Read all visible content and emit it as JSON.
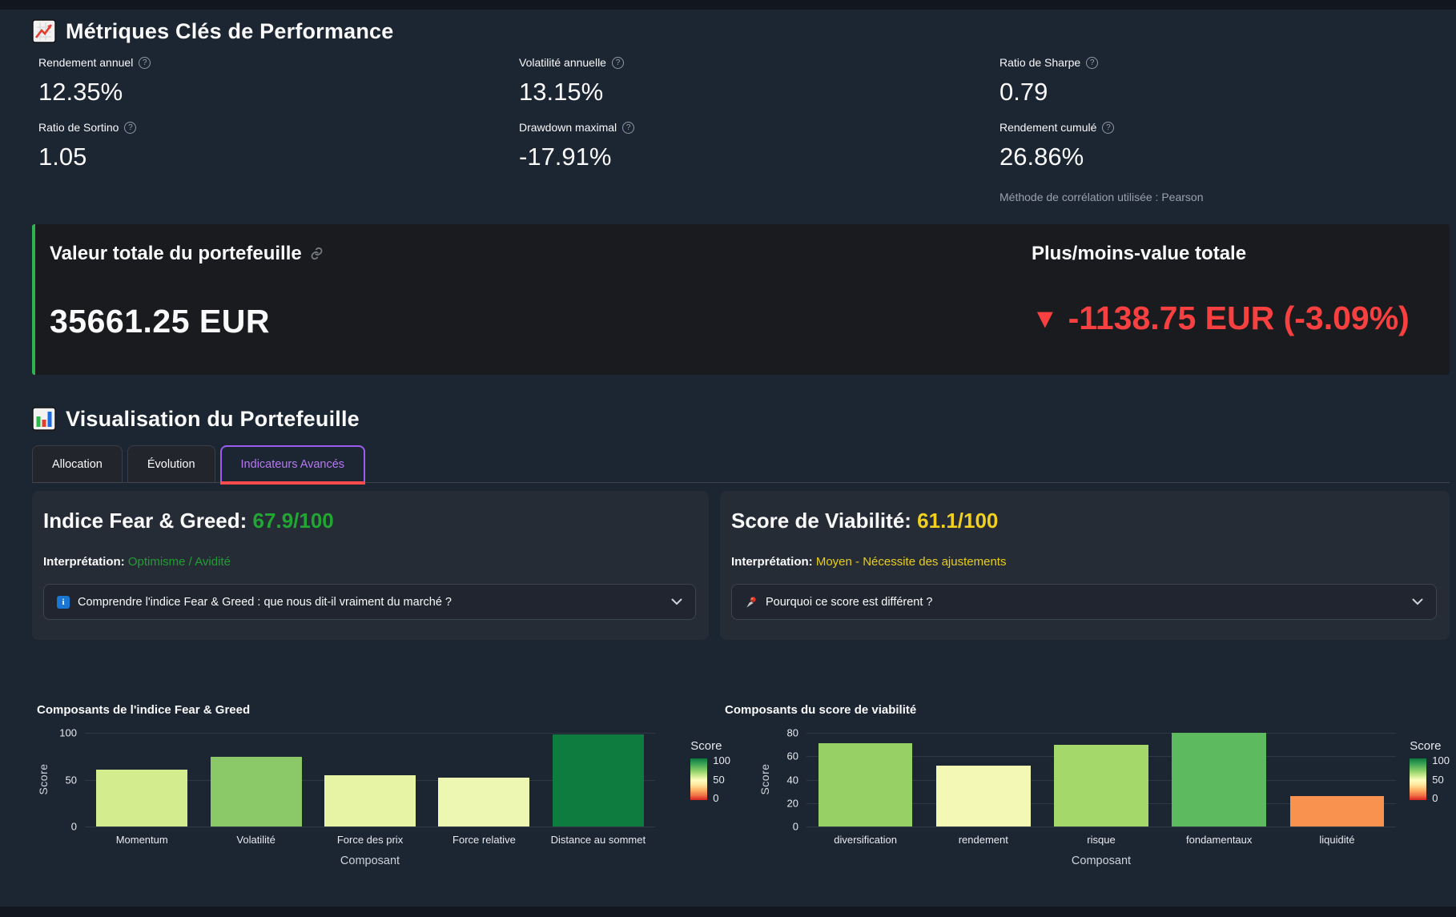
{
  "header": {
    "title": "Métriques Clés de Performance"
  },
  "metrics": [
    {
      "label": "Rendement annuel",
      "value": "12.35%"
    },
    {
      "label": "Volatilité annuelle",
      "value": "13.15%"
    },
    {
      "label": "Ratio de Sharpe",
      "value": "0.79"
    },
    {
      "label": "Ratio de Sortino",
      "value": "1.05"
    },
    {
      "label": "Drawdown maximal",
      "value": "-17.91%"
    },
    {
      "label": "Rendement cumulé",
      "value": "26.86%"
    }
  ],
  "caption": "Méthode de corrélation utilisée : Pearson",
  "portfolio_card": {
    "title": "Valeur totale du portefeuille",
    "value": "35661.25 EUR",
    "pl_title": "Plus/moins-value totale",
    "pl_arrow": "▼",
    "pl_value": "-1138.75 EUR (-3.09%)",
    "accent_green": "#2eb350",
    "negative_red": "#f84040"
  },
  "viz": {
    "title": "Visualisation du Portefeuille",
    "active_tab": 2,
    "tabs": [
      {
        "label": "Allocation"
      },
      {
        "label": "Évolution"
      },
      {
        "label": "Indicateurs Avancés"
      }
    ],
    "active_color": "#b77af2",
    "underline_color": "#ff4b4b"
  },
  "fear_greed": {
    "heading": "Indice Fear & Greed:",
    "score": "67.9/100",
    "score_color": "#22a633",
    "interp_label": "Interprétation:",
    "interpretation": "Optimisme / Avidité",
    "expander": "Comprendre l'indice Fear & Greed : que nous dit-il vraiment du marché ?"
  },
  "viability": {
    "heading": "Score de Viabilité:",
    "score": "61.1/100",
    "score_color": "#f2d01e",
    "interp_label": "Interprétation:",
    "interpretation": "Moyen - Nécessite des ajustements",
    "expander": "Pourquoi ce score est différent ?"
  },
  "chart_data": [
    {
      "type": "bar",
      "title": "Composants de l'indice Fear & Greed",
      "xlabel": "Composant",
      "ylabel": "Score",
      "categories": [
        "Momentum",
        "Volatilité",
        "Force des prix",
        "Force relative",
        "Distance au sommet"
      ],
      "values": [
        61,
        74,
        55,
        52,
        98
      ],
      "bar_colors": [
        "#d3ec8d",
        "#8bc968",
        "#e7f4a6",
        "#eef7b2",
        "#0e7c3f"
      ],
      "ylim": [
        0,
        100
      ],
      "yticks": [
        0,
        50,
        100
      ],
      "grid": true,
      "legend": {
        "title": "Score",
        "ticks": [
          100,
          50,
          0
        ],
        "position": "right"
      }
    },
    {
      "type": "bar",
      "title": "Composants du score de viabilité",
      "xlabel": "Composant",
      "ylabel": "Score",
      "categories": [
        "diversification",
        "rendement",
        "risque",
        "fondamentaux",
        "liquidité"
      ],
      "values": [
        71,
        52,
        70,
        80,
        26
      ],
      "bar_colors": [
        "#97d166",
        "#f3f9b4",
        "#a5d86a",
        "#5eba5e",
        "#f9914f"
      ],
      "ylim": [
        0,
        80
      ],
      "yticks": [
        0,
        20,
        40,
        60,
        80
      ],
      "grid": true,
      "legend": {
        "title": "Score",
        "ticks": [
          100,
          50,
          0
        ],
        "position": "right"
      }
    }
  ]
}
